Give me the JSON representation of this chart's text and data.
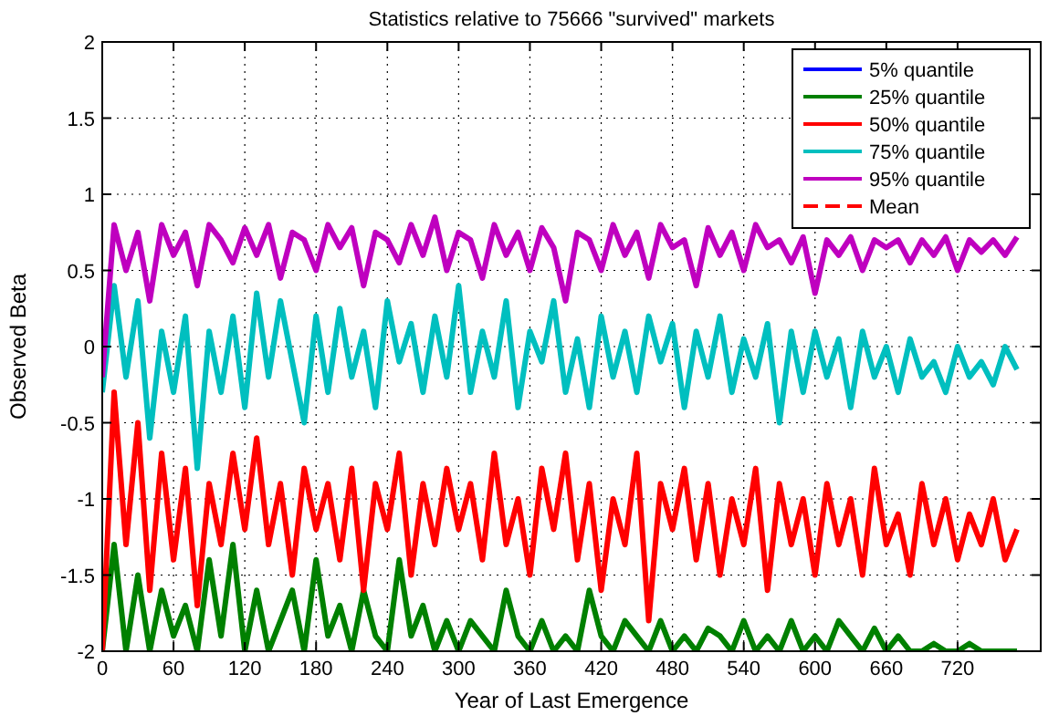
{
  "chart_data": {
    "type": "line",
    "title": "Statistics relative to 75666 \"survived\" markets",
    "xlabel": "Year of Last Emergence",
    "ylabel": "Observed Beta",
    "x": [
      0,
      10,
      20,
      30,
      40,
      50,
      60,
      70,
      80,
      90,
      100,
      110,
      120,
      130,
      140,
      150,
      160,
      170,
      180,
      190,
      200,
      210,
      220,
      230,
      240,
      250,
      260,
      270,
      280,
      290,
      300,
      310,
      320,
      330,
      340,
      350,
      360,
      370,
      380,
      390,
      400,
      410,
      420,
      430,
      440,
      450,
      460,
      470,
      480,
      490,
      500,
      510,
      520,
      530,
      540,
      550,
      560,
      570,
      580,
      590,
      600,
      610,
      620,
      630,
      640,
      650,
      660,
      670,
      680,
      690,
      700,
      710,
      720,
      730,
      740,
      750,
      760,
      770
    ],
    "xlim": [
      0,
      790
    ],
    "xticks": [
      0,
      60,
      120,
      180,
      240,
      300,
      360,
      420,
      480,
      540,
      600,
      660,
      720
    ],
    "ylim": [
      -2,
      2
    ],
    "yticks": [
      -2,
      -1.5,
      -1,
      -0.5,
      0,
      0.5,
      1,
      1.5,
      2
    ],
    "grid": true,
    "legend": "top right",
    "line_style": "solid",
    "series": [
      {
        "name": "5% quantile",
        "color": "#0000ff",
        "values": [
          null,
          null,
          null,
          null,
          null,
          null,
          null,
          null,
          null,
          null,
          null,
          null,
          null,
          null,
          null,
          null,
          null,
          null,
          null,
          null,
          null,
          null,
          null,
          null,
          null,
          null,
          null,
          null,
          null,
          null,
          null,
          null,
          null,
          null,
          null,
          null,
          null,
          null,
          null,
          null,
          null,
          null,
          null,
          null,
          null,
          null,
          null,
          null,
          null,
          null,
          null,
          null,
          null,
          null,
          null,
          null,
          null,
          null,
          null,
          null,
          null,
          null,
          null,
          null,
          null,
          null,
          null,
          null,
          null,
          null,
          null,
          null,
          null,
          null,
          null,
          null,
          null,
          null
        ]
      },
      {
        "name": "25% quantile",
        "color": "#008000",
        "values": [
          -2.0,
          -1.3,
          -2.0,
          -1.5,
          -2.0,
          -1.6,
          -1.9,
          -1.7,
          -2.0,
          -1.4,
          -1.9,
          -1.3,
          -2.0,
          -1.6,
          -2.0,
          -1.8,
          -1.6,
          -2.0,
          -1.4,
          -1.9,
          -1.7,
          -2.0,
          -1.6,
          -1.9,
          -2.0,
          -1.4,
          -1.9,
          -1.7,
          -2.0,
          -1.8,
          -2.0,
          -1.8,
          -1.9,
          -2.0,
          -1.6,
          -1.9,
          -2.0,
          -1.8,
          -2.0,
          -1.9,
          -2.0,
          -1.6,
          -1.9,
          -2.0,
          -1.8,
          -1.9,
          -2.0,
          -1.8,
          -2.0,
          -1.9,
          -2.0,
          -1.85,
          -1.9,
          -2.0,
          -1.8,
          -2.0,
          -1.9,
          -2.0,
          -1.8,
          -2.0,
          -1.9,
          -2.0,
          -1.8,
          -1.9,
          -2.0,
          -1.85,
          -2.0,
          -1.9,
          -2.0,
          -2.0,
          -1.95,
          -2.0,
          -2.0,
          -1.95,
          -2.0,
          -2.0,
          -2.0,
          -2.0
        ]
      },
      {
        "name": "50% quantile",
        "color": "#ff0000",
        "values": [
          -2.0,
          -0.3,
          -1.3,
          -0.5,
          -1.6,
          -0.7,
          -1.4,
          -0.8,
          -1.7,
          -0.9,
          -1.3,
          -0.7,
          -1.2,
          -0.6,
          -1.3,
          -0.9,
          -1.5,
          -0.8,
          -1.2,
          -0.9,
          -1.4,
          -0.8,
          -1.6,
          -0.9,
          -1.2,
          -0.7,
          -1.5,
          -0.9,
          -1.3,
          -0.8,
          -1.2,
          -0.9,
          -1.4,
          -0.7,
          -1.3,
          -1.0,
          -1.5,
          -0.8,
          -1.2,
          -0.7,
          -1.4,
          -0.9,
          -1.6,
          -1.0,
          -1.3,
          -0.7,
          -1.8,
          -0.9,
          -1.2,
          -0.8,
          -1.4,
          -0.9,
          -1.5,
          -1.0,
          -1.3,
          -0.8,
          -1.6,
          -0.9,
          -1.3,
          -1.0,
          -1.5,
          -0.9,
          -1.3,
          -1.0,
          -1.5,
          -0.8,
          -1.3,
          -1.1,
          -1.5,
          -0.9,
          -1.3,
          -1.0,
          -1.4,
          -1.1,
          -1.3,
          -1.0,
          -1.4,
          -1.2
        ]
      },
      {
        "name": "75% quantile",
        "color": "#00bfbf",
        "values": [
          -0.3,
          0.4,
          -0.2,
          0.3,
          -0.6,
          0.1,
          -0.3,
          0.2,
          -0.8,
          0.1,
          -0.3,
          0.2,
          -0.4,
          0.35,
          -0.2,
          0.3,
          -0.1,
          -0.5,
          0.2,
          -0.3,
          0.25,
          -0.2,
          0.1,
          -0.4,
          0.3,
          -0.1,
          0.15,
          -0.3,
          0.2,
          -0.2,
          0.4,
          -0.3,
          0.1,
          -0.2,
          0.3,
          -0.4,
          0.1,
          -0.1,
          0.3,
          -0.3,
          0.05,
          -0.4,
          0.2,
          -0.2,
          0.1,
          -0.3,
          0.2,
          -0.1,
          0.15,
          -0.4,
          0.1,
          -0.2,
          0.2,
          -0.3,
          0.05,
          -0.2,
          0.15,
          -0.5,
          0.1,
          -0.3,
          0.1,
          -0.2,
          0.05,
          -0.4,
          0.1,
          -0.2,
          0.0,
          -0.3,
          0.05,
          -0.2,
          -0.1,
          -0.3,
          0.0,
          -0.2,
          -0.1,
          -0.25,
          0.0,
          -0.15
        ]
      },
      {
        "name": "95% quantile",
        "color": "#bf00bf",
        "values": [
          -0.2,
          0.8,
          0.5,
          0.75,
          0.3,
          0.8,
          0.6,
          0.75,
          0.4,
          0.8,
          0.7,
          0.55,
          0.78,
          0.6,
          0.8,
          0.45,
          0.75,
          0.7,
          0.5,
          0.8,
          0.65,
          0.78,
          0.4,
          0.75,
          0.7,
          0.55,
          0.8,
          0.6,
          0.85,
          0.5,
          0.75,
          0.7,
          0.45,
          0.8,
          0.6,
          0.75,
          0.5,
          0.78,
          0.65,
          0.3,
          0.75,
          0.7,
          0.5,
          0.8,
          0.6,
          0.75,
          0.45,
          0.8,
          0.65,
          0.7,
          0.4,
          0.78,
          0.6,
          0.75,
          0.5,
          0.8,
          0.65,
          0.7,
          0.55,
          0.72,
          0.35,
          0.7,
          0.6,
          0.72,
          0.5,
          0.7,
          0.65,
          0.7,
          0.55,
          0.7,
          0.6,
          0.72,
          0.5,
          0.7,
          0.62,
          0.7,
          0.6,
          0.72
        ]
      },
      {
        "name": "Mean",
        "color": "#ff0000",
        "line_style": "dashed",
        "values": [
          null,
          null,
          null,
          null,
          null,
          null,
          null,
          null,
          null,
          null,
          null,
          null,
          null,
          null,
          null,
          null,
          null,
          null,
          null,
          null,
          null,
          null,
          null,
          null,
          null,
          null,
          null,
          null,
          null,
          null,
          null,
          null,
          null,
          null,
          null,
          null,
          null,
          null,
          null,
          null,
          null,
          null,
          null,
          null,
          null,
          null,
          null,
          null,
          null,
          null,
          null,
          null,
          null,
          null,
          null,
          null,
          null,
          null,
          null,
          null,
          null,
          null,
          null,
          null,
          null,
          null,
          null,
          null,
          null,
          null,
          null,
          null,
          null,
          null,
          null,
          null,
          null,
          null
        ]
      }
    ]
  }
}
